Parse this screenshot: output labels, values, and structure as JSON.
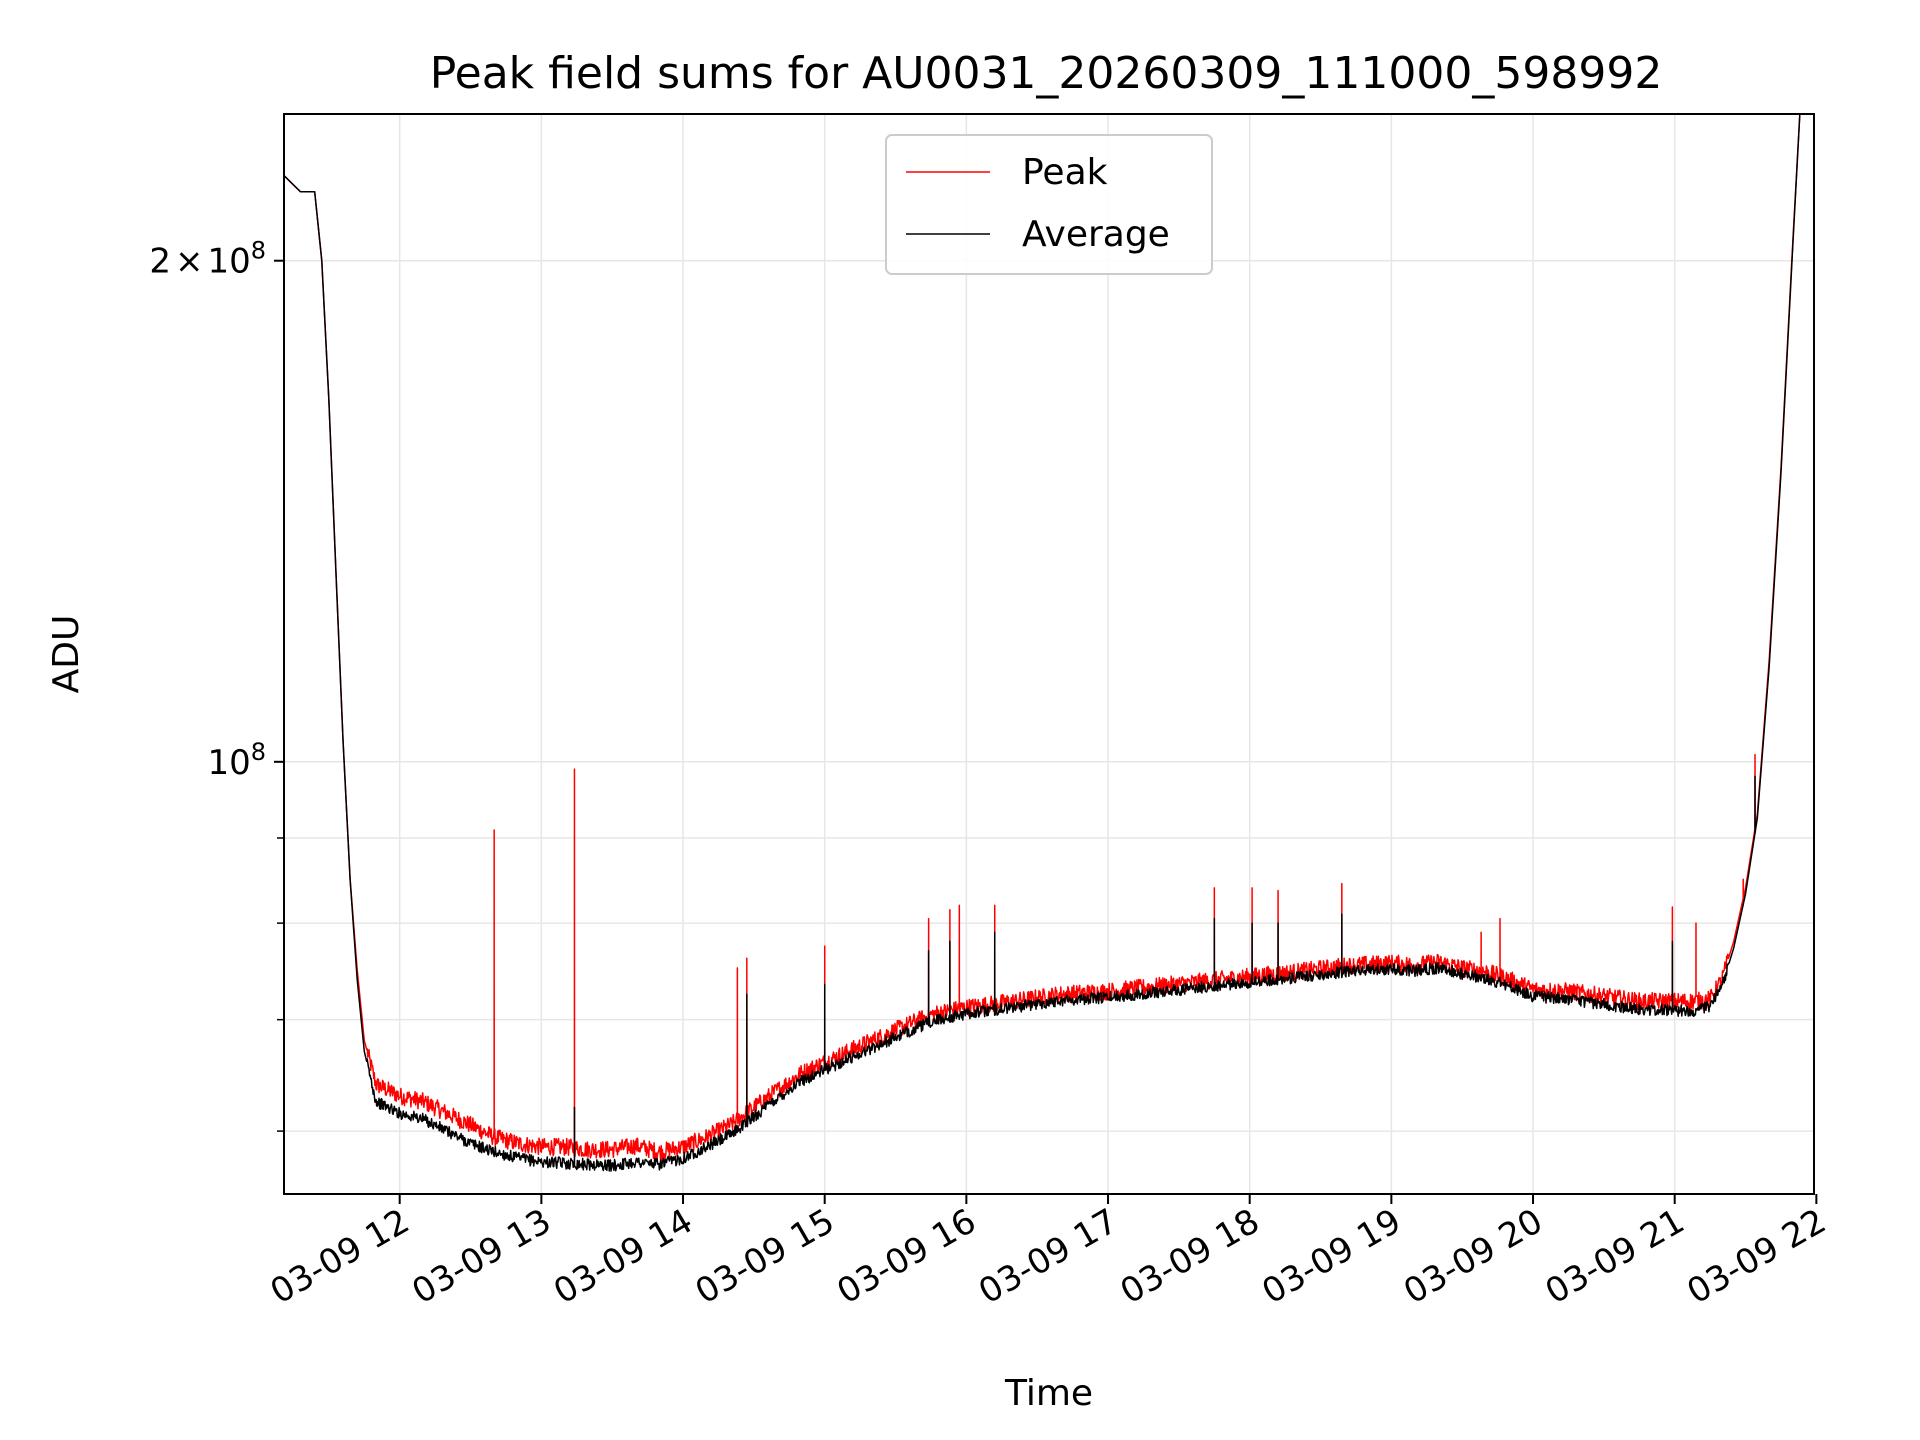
{
  "chart_data": {
    "type": "line",
    "title": "Peak field sums for AU0031_20260309_111000_598992",
    "xlabel": "Time",
    "ylabel": "ADU",
    "yscale": "log",
    "ylim": [
      55000000,
      245000000
    ],
    "xlim": [
      "03-09 11:11",
      "03-09 21:59"
    ],
    "grid": true,
    "legend": "top-center",
    "x_ticks": [
      "03-09 12",
      "03-09 13",
      "03-09 14",
      "03-09 15",
      "03-09 16",
      "03-09 17",
      "03-09 18",
      "03-09 19",
      "03-09 20",
      "03-09 21",
      "03-09 22"
    ],
    "y_ticks": [
      {
        "value": 200000000,
        "label_mantissa": "2",
        "label_times": "×",
        "label_base": "10",
        "label_exp": "8"
      },
      {
        "value": 100000000,
        "label_mantissa": "",
        "label_times": "",
        "label_base": "10",
        "label_exp": "8"
      }
    ],
    "y_minor_ticks": [
      60000000,
      70000000,
      80000000,
      90000000
    ],
    "series": [
      {
        "name": "Peak",
        "color": "#ff0000",
        "x": [
          "03-09 11:11",
          "03-09 11:18",
          "03-09 11:24",
          "03-09 11:27",
          "03-09 11:30",
          "03-09 11:33",
          "03-09 11:36",
          "03-09 11:39",
          "03-09 11:42",
          "03-09 11:45",
          "03-09 11:50",
          "03-09 12:00",
          "03-09 12:10",
          "03-09 12:20",
          "03-09 12:30",
          "03-09 12:40",
          "03-09 12:50",
          "03-09 13:00",
          "03-09 13:10",
          "03-09 13:20",
          "03-09 13:30",
          "03-09 13:40",
          "03-09 13:50",
          "03-09 14:00",
          "03-09 14:10",
          "03-09 14:20",
          "03-09 14:30",
          "03-09 14:40",
          "03-09 14:50",
          "03-09 15:00",
          "03-09 15:15",
          "03-09 15:30",
          "03-09 15:45",
          "03-09 16:00",
          "03-09 16:20",
          "03-09 16:40",
          "03-09 17:00",
          "03-09 17:20",
          "03-09 17:40",
          "03-09 18:00",
          "03-09 18:20",
          "03-09 18:40",
          "03-09 19:00",
          "03-09 19:10",
          "03-09 19:20",
          "03-09 19:30",
          "03-09 19:40",
          "03-09 19:50",
          "03-09 20:00",
          "03-09 20:15",
          "03-09 20:30",
          "03-09 20:45",
          "03-09 21:00",
          "03-09 21:08",
          "03-09 21:15",
          "03-09 21:20",
          "03-09 21:25",
          "03-09 21:30",
          "03-09 21:35",
          "03-09 21:40",
          "03-09 21:45",
          "03-09 21:50",
          "03-09 21:53"
        ],
        "values": [
          225000000,
          220000000,
          220000000,
          200000000,
          165000000,
          130000000,
          103000000,
          85000000,
          75000000,
          68000000,
          64000000,
          63000000,
          62500000,
          61500000,
          60500000,
          59500000,
          59000000,
          58700000,
          58700000,
          58500000,
          58500000,
          58800000,
          58300000,
          58700000,
          59500000,
          60500000,
          62000000,
          63500000,
          65000000,
          66000000,
          67500000,
          69000000,
          70500000,
          71200000,
          71800000,
          72500000,
          72800000,
          73300000,
          73800000,
          74300000,
          74800000,
          75400000,
          75700000,
          75500000,
          75800000,
          75200000,
          74800000,
          74000000,
          73000000,
          72800000,
          72300000,
          71800000,
          71800000,
          71800000,
          72000000,
          74000000,
          78000000,
          84000000,
          93000000,
          115000000,
          150000000,
          205000000,
          245000000
        ],
        "spikes": [
          {
            "x": "03-09 12:40",
            "value": 91000000
          },
          {
            "x": "03-09 13:14",
            "value": 99000000
          },
          {
            "x": "03-09 14:23",
            "value": 75200000
          },
          {
            "x": "03-09 14:27",
            "value": 76200000
          },
          {
            "x": "03-09 15:00",
            "value": 77500000
          },
          {
            "x": "03-09 15:44",
            "value": 80500000
          },
          {
            "x": "03-09 15:53",
            "value": 81500000
          },
          {
            "x": "03-09 15:57",
            "value": 82000000
          },
          {
            "x": "03-09 16:12",
            "value": 82000000
          },
          {
            "x": "03-09 17:45",
            "value": 84000000
          },
          {
            "x": "03-09 18:01",
            "value": 84000000
          },
          {
            "x": "03-09 18:12",
            "value": 83700000
          },
          {
            "x": "03-09 18:39",
            "value": 84500000
          },
          {
            "x": "03-09 19:38",
            "value": 79000000
          },
          {
            "x": "03-09 19:46",
            "value": 80500000
          },
          {
            "x": "03-09 20:59",
            "value": 81800000
          },
          {
            "x": "03-09 21:09",
            "value": 80000000
          },
          {
            "x": "03-09 21:29",
            "value": 85000000
          },
          {
            "x": "03-09 21:34",
            "value": 101000000
          }
        ]
      },
      {
        "name": "Average",
        "color": "#000000",
        "x": [
          "03-09 11:11",
          "03-09 11:18",
          "03-09 11:24",
          "03-09 11:27",
          "03-09 11:30",
          "03-09 11:33",
          "03-09 11:36",
          "03-09 11:39",
          "03-09 11:42",
          "03-09 11:45",
          "03-09 11:50",
          "03-09 12:00",
          "03-09 12:10",
          "03-09 12:20",
          "03-09 12:30",
          "03-09 12:40",
          "03-09 12:50",
          "03-09 13:00",
          "03-09 13:10",
          "03-09 13:20",
          "03-09 13:30",
          "03-09 13:40",
          "03-09 13:50",
          "03-09 14:00",
          "03-09 14:10",
          "03-09 14:20",
          "03-09 14:30",
          "03-09 14:40",
          "03-09 14:50",
          "03-09 15:00",
          "03-09 15:15",
          "03-09 15:30",
          "03-09 15:45",
          "03-09 16:00",
          "03-09 16:20",
          "03-09 16:40",
          "03-09 17:00",
          "03-09 17:20",
          "03-09 17:40",
          "03-09 18:00",
          "03-09 18:20",
          "03-09 18:40",
          "03-09 19:00",
          "03-09 19:10",
          "03-09 19:20",
          "03-09 19:30",
          "03-09 19:40",
          "03-09 19:50",
          "03-09 20:00",
          "03-09 20:15",
          "03-09 20:30",
          "03-09 20:45",
          "03-09 21:00",
          "03-09 21:08",
          "03-09 21:15",
          "03-09 21:20",
          "03-09 21:25",
          "03-09 21:30",
          "03-09 21:35",
          "03-09 21:40",
          "03-09 21:45",
          "03-09 21:50",
          "03-09 21:53"
        ],
        "values": [
          225000000,
          220000000,
          220000000,
          200000000,
          165000000,
          130000000,
          103000000,
          85000000,
          74000000,
          67000000,
          62500000,
          61500000,
          61000000,
          60000000,
          59000000,
          58300000,
          57800000,
          57500000,
          57400000,
          57300000,
          57200000,
          57500000,
          57300000,
          57800000,
          58700000,
          59700000,
          61200000,
          62800000,
          64300000,
          65300000,
          66800000,
          68300000,
          69800000,
          70600000,
          71200000,
          71900000,
          72200000,
          72700000,
          73200000,
          73700000,
          74200000,
          74800000,
          75100000,
          74900000,
          75200000,
          74600000,
          74100000,
          73300000,
          72300000,
          72000000,
          71500000,
          71000000,
          70900000,
          70900000,
          71300000,
          73300000,
          77300000,
          83300000,
          92500000,
          114000000,
          149000000,
          204000000,
          245000000
        ],
        "spikes": [
          {
            "x": "03-09 13:14",
            "value": 62000000
          },
          {
            "x": "03-09 14:27",
            "value": 72500000
          },
          {
            "x": "03-09 15:00",
            "value": 73500000
          },
          {
            "x": "03-09 15:44",
            "value": 77000000
          },
          {
            "x": "03-09 15:53",
            "value": 78000000
          },
          {
            "x": "03-09 16:12",
            "value": 79000000
          },
          {
            "x": "03-09 17:45",
            "value": 80500000
          },
          {
            "x": "03-09 18:01",
            "value": 80000000
          },
          {
            "x": "03-09 18:12",
            "value": 80000000
          },
          {
            "x": "03-09 18:39",
            "value": 81000000
          },
          {
            "x": "03-09 20:59",
            "value": 78000000
          },
          {
            "x": "03-09 21:34",
            "value": 98000000
          }
        ]
      }
    ]
  }
}
